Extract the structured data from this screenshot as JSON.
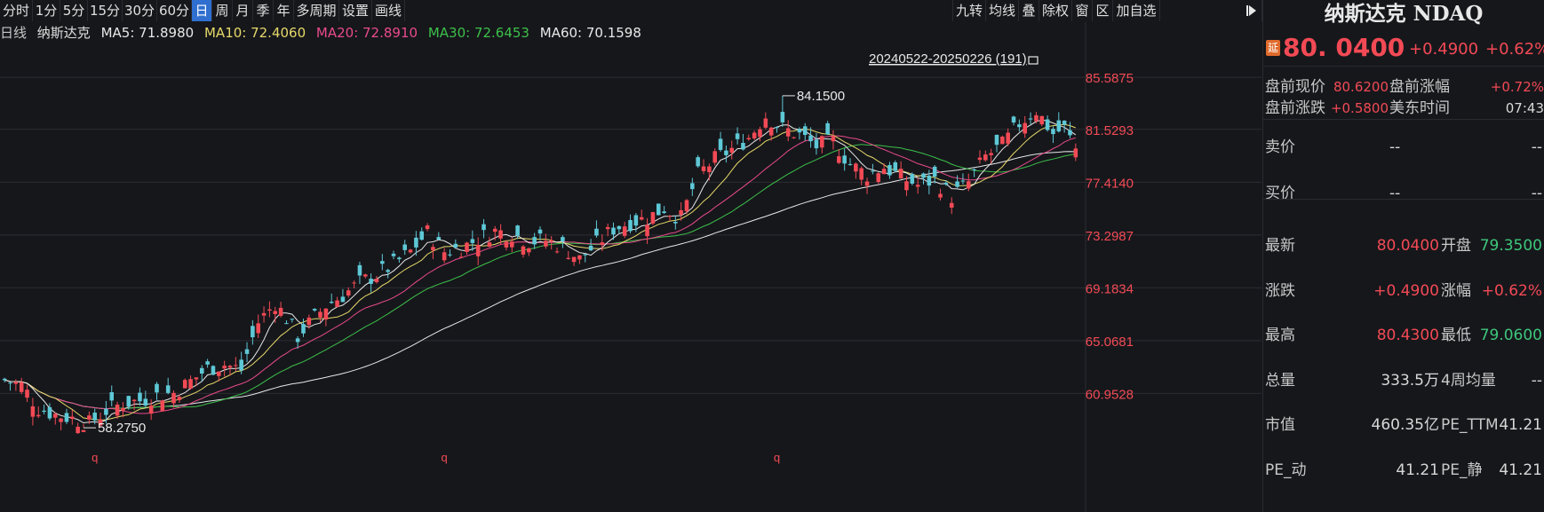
{
  "toolbar": {
    "periods": [
      "分时",
      "1分",
      "5分",
      "15分",
      "30分",
      "60分",
      "日",
      "周",
      "月",
      "季",
      "年",
      "多周期",
      "设置",
      "画线"
    ],
    "active": "日",
    "right_tools": [
      "九转",
      "均线",
      "叠",
      "除权",
      "窗",
      "区",
      "加自选"
    ]
  },
  "ma_bar": {
    "label": "日线",
    "name": "纳斯达克",
    "ma5": "MA5: 71.8980",
    "ma10": "MA10: 72.4060",
    "ma20": "MA20: 72.8910",
    "ma30": "MA30: 72.6453",
    "ma60": "MA60: 70.1598"
  },
  "colors": {
    "up": "#f24a55",
    "down": "#5ec8d6",
    "ma5": "#e8e8e8",
    "ma10": "#e6d96a",
    "ma20": "#e84a8c",
    "ma30": "#3cc04a",
    "ma60": "#e8e8e8",
    "bg": "#16171b",
    "grid": "#2c2d33"
  },
  "chart_data": {
    "type": "candlestick",
    "ylim": [
      56.0,
      88.5
    ],
    "yticks": [
      "85.5875",
      "81.5293",
      "77.4140",
      "73.2987",
      "69.1834",
      "65.0681",
      "60.9528"
    ],
    "range_label": "20240522-20250226 (191)",
    "max_label": "84.1500",
    "min_label": "58.2750",
    "markers": [
      "q",
      "q",
      "q"
    ],
    "ma_values": {
      "ma5": 71.898,
      "ma10": 72.406,
      "ma20": 72.891,
      "ma30": 72.6453,
      "ma60": 70.1598
    },
    "close_path": [
      [
        0,
        62.0
      ],
      [
        3,
        61.6
      ],
      [
        6,
        59.8
      ],
      [
        9,
        59.3
      ],
      [
        12,
        59.0
      ],
      [
        15,
        58.6
      ],
      [
        18,
        59.6
      ],
      [
        21,
        60.2
      ],
      [
        24,
        60.4
      ],
      [
        27,
        60.8
      ],
      [
        30,
        61.0
      ],
      [
        33,
        61.9
      ],
      [
        36,
        62.9
      ],
      [
        39,
        63.2
      ],
      [
        42,
        62.8
      ],
      [
        45,
        66.5
      ],
      [
        48,
        68.0
      ],
      [
        50,
        66.8
      ],
      [
        52,
        65.4
      ],
      [
        54,
        66.4
      ],
      [
        57,
        67.8
      ],
      [
        60,
        68.6
      ],
      [
        63,
        69.6
      ],
      [
        66,
        70.2
      ],
      [
        69,
        71.0
      ],
      [
        72,
        72.0
      ],
      [
        75,
        73.5
      ],
      [
        78,
        72.0
      ],
      [
        81,
        72.3
      ],
      [
        84,
        73.0
      ],
      [
        87,
        73.6
      ],
      [
        90,
        73.4
      ],
      [
        93,
        72.8
      ],
      [
        96,
        72.9
      ],
      [
        99,
        72.4
      ],
      [
        102,
        71.4
      ],
      [
        105,
        72.6
      ],
      [
        108,
        73.8
      ],
      [
        111,
        74.3
      ],
      [
        114,
        74.6
      ],
      [
        117,
        75.4
      ],
      [
        120,
        74.6
      ],
      [
        123,
        78.0
      ],
      [
        126,
        79.2
      ],
      [
        129,
        80.0
      ],
      [
        132,
        80.9
      ],
      [
        135,
        82.6
      ],
      [
        138,
        81.6
      ],
      [
        141,
        81.1
      ],
      [
        144,
        80.2
      ],
      [
        147,
        80.6
      ],
      [
        150,
        78.8
      ],
      [
        153,
        78.0
      ],
      [
        156,
        78.6
      ],
      [
        159,
        77.8
      ],
      [
        162,
        77.2
      ],
      [
        165,
        77.6
      ],
      [
        168,
        76.3
      ],
      [
        171,
        77.4
      ],
      [
        174,
        79.4
      ],
      [
        177,
        80.3
      ],
      [
        180,
        82.0
      ],
      [
        183,
        83.0
      ],
      [
        186,
        81.2
      ],
      [
        188,
        81.6
      ],
      [
        190,
        80.04
      ]
    ]
  },
  "panel": {
    "title": "纳斯达克 NDAQ",
    "badge": "延",
    "price": "80. 0400",
    "change": "+0.4900",
    "change_pct": "+0.62%",
    "premarket": [
      {
        "label": "盘前现价",
        "value": "80.6200",
        "label2": "盘前涨幅",
        "value2": "+0.72%"
      },
      {
        "label": "盘前涨跌",
        "value": "+0.5800",
        "label2": "美东时间",
        "value2": "07:43"
      }
    ],
    "orderbook": [
      {
        "label": "卖价",
        "v1": "--",
        "v2": "--"
      },
      {
        "label": "买价",
        "v1": "--",
        "v2": "--"
      }
    ],
    "stats": [
      {
        "label": "最新",
        "value": "80.0400",
        "vclass": "red",
        "label2": "开盘",
        "value2": "79.3500",
        "v2class": "green"
      },
      {
        "label": "涨跌",
        "value": "+0.4900",
        "vclass": "red",
        "label2": "涨幅",
        "value2": "+0.62%",
        "v2class": "red"
      },
      {
        "label": "最高",
        "value": "80.4300",
        "vclass": "red",
        "label2": "最低",
        "value2": "79.0600",
        "v2class": "green"
      },
      {
        "label": "总量",
        "value": "333.5万",
        "vclass": "white",
        "label2": "4周均量",
        "value2": "--",
        "v2class": "white"
      },
      {
        "label": "市值",
        "value": "460.35亿",
        "vclass": "white",
        "label2": "PE_TTM",
        "value2": "41.21",
        "v2class": "white"
      },
      {
        "label": "PE_动",
        "value": "41.21",
        "vclass": "white",
        "label2": "PE_静",
        "value2": "41.21",
        "v2class": "white"
      }
    ]
  }
}
